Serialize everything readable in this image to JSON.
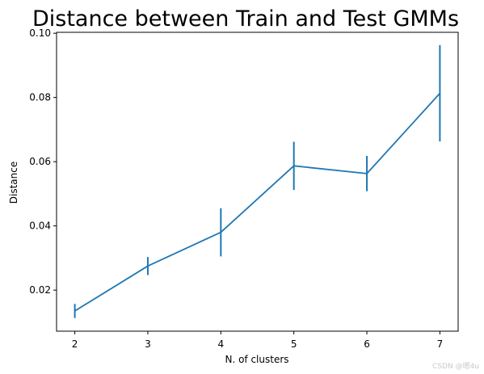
{
  "chart_data": {
    "type": "line",
    "title": "Distance between Train and Test GMMs",
    "xlabel": "N. of clusters",
    "ylabel": "Distance",
    "x": [
      2,
      3,
      4,
      5,
      6,
      7
    ],
    "x_ticks": [
      "2",
      "3",
      "4",
      "5",
      "6",
      "7"
    ],
    "xlim": [
      1.75,
      7.25
    ],
    "ylim": [
      0.0072,
      0.1003
    ],
    "y_ticks": [
      "0.02",
      "0.04",
      "0.06",
      "0.08",
      "0.10"
    ],
    "y_tick_values": [
      0.02,
      0.04,
      0.06,
      0.08,
      0.1
    ],
    "series": [
      {
        "values": [
          0.0135,
          0.0275,
          0.038,
          0.0587,
          0.0563,
          0.0813
        ],
        "error": [
          0.0022,
          0.0028,
          0.0075,
          0.0075,
          0.0055,
          0.015
        ],
        "color": "#1f77b4"
      }
    ],
    "grid": false,
    "legend": "none"
  },
  "watermark": "CSDN @嗯4u"
}
